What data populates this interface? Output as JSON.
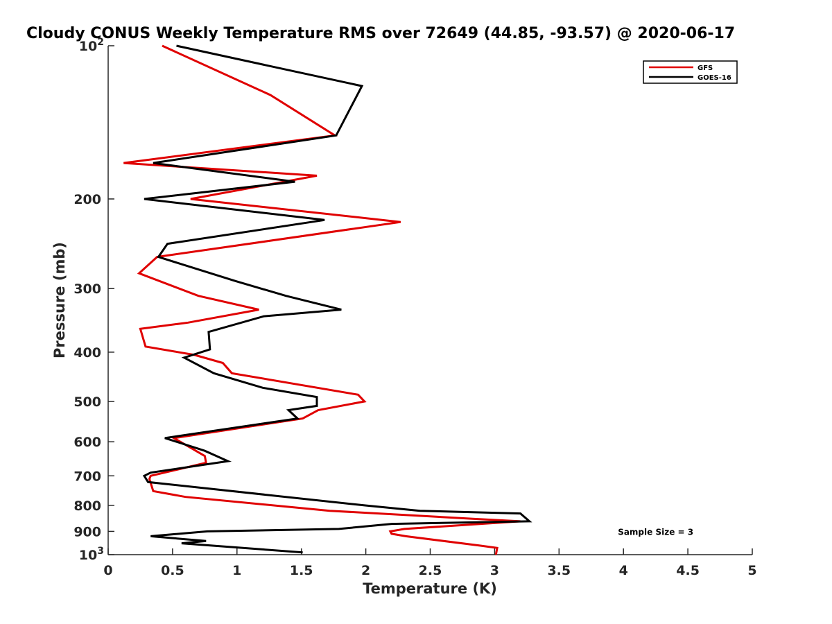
{
  "chart_data": {
    "type": "line",
    "title": "Cloudy CONUS Weekly Temperature RMS over 72649 (44.85, -93.57) @ 2020-06-17",
    "xlabel": "Temperature (K)",
    "ylabel": "Pressure (mb)",
    "xlim": [
      0,
      5
    ],
    "ylim": [
      100,
      1000
    ],
    "y_scale": "log",
    "y_reversed": true,
    "grid": false,
    "legend_position": "top-right",
    "x_ticks": [
      {
        "value": 0,
        "label": "0"
      },
      {
        "value": 0.5,
        "label": "0.5"
      },
      {
        "value": 1,
        "label": "1"
      },
      {
        "value": 1.5,
        "label": "1.5"
      },
      {
        "value": 2,
        "label": "2"
      },
      {
        "value": 2.5,
        "label": "2.5"
      },
      {
        "value": 3,
        "label": "3"
      },
      {
        "value": 3.5,
        "label": "3.5"
      },
      {
        "value": 4,
        "label": "4"
      },
      {
        "value": 4.5,
        "label": "4.5"
      },
      {
        "value": 5,
        "label": "5"
      }
    ],
    "y_ticks": [
      {
        "value": 100,
        "base": "10",
        "exp": "2"
      },
      {
        "value": 200,
        "base": "200",
        "exp": ""
      },
      {
        "value": 300,
        "base": "300",
        "exp": ""
      },
      {
        "value": 400,
        "base": "400",
        "exp": ""
      },
      {
        "value": 500,
        "base": "500",
        "exp": ""
      },
      {
        "value": 600,
        "base": "600",
        "exp": ""
      },
      {
        "value": 700,
        "base": "700",
        "exp": ""
      },
      {
        "value": 800,
        "base": "800",
        "exp": ""
      },
      {
        "value": 900,
        "base": "900",
        "exp": ""
      },
      {
        "value": 1000,
        "base": "10",
        "exp": "3"
      }
    ],
    "series": [
      {
        "name": "GFS",
        "color": "#e00000",
        "x": [
          0.42,
          1.26,
          1.76,
          0.12,
          1.62,
          0.64,
          2.27,
          0.38,
          0.24,
          0.7,
          1.17,
          0.62,
          0.25,
          0.29,
          0.67,
          0.89,
          0.96,
          1.94,
          1.99,
          1.63,
          1.51,
          0.51,
          0.75,
          0.76,
          0.33,
          0.32,
          0.35,
          0.6,
          1.72,
          2.83,
          3.2,
          2.3,
          2.19,
          2.2,
          2.31,
          2.89,
          3.02,
          3.01
        ],
        "y": [
          100,
          125,
          150,
          170,
          180,
          200,
          222,
          260,
          280,
          310,
          330,
          350,
          360,
          390,
          405,
          420,
          440,
          485,
          500,
          520,
          540,
          590,
          640,
          660,
          700,
          710,
          750,
          770,
          820,
          850,
          860,
          890,
          900,
          910,
          920,
          960,
          970,
          1000
        ]
      },
      {
        "name": "GOES-16",
        "color": "#000000",
        "x": [
          0.53,
          1.97,
          1.77,
          0.35,
          1.45,
          0.28,
          1.68,
          0.46,
          0.39,
          0.99,
          1.38,
          1.81,
          1.21,
          0.78,
          0.79,
          0.59,
          0.82,
          1.2,
          1.62,
          1.62,
          1.4,
          1.47,
          0.44,
          0.75,
          0.93,
          0.33,
          0.28,
          0.31,
          1.99,
          2.42,
          3.2,
          3.27,
          2.2,
          1.79,
          0.77,
          0.33,
          0.76,
          0.57,
          1.51
        ],
        "y": [
          100,
          120,
          150,
          170,
          185,
          200,
          220,
          245,
          260,
          290,
          310,
          330,
          340,
          365,
          395,
          410,
          440,
          470,
          490,
          510,
          520,
          540,
          590,
          625,
          655,
          690,
          700,
          720,
          800,
          820,
          830,
          860,
          870,
          890,
          900,
          920,
          940,
          950,
          990
        ]
      }
    ],
    "annotations": [
      {
        "text": "Sample Size = 3",
        "x": 4.25,
        "y": 900
      }
    ]
  }
}
